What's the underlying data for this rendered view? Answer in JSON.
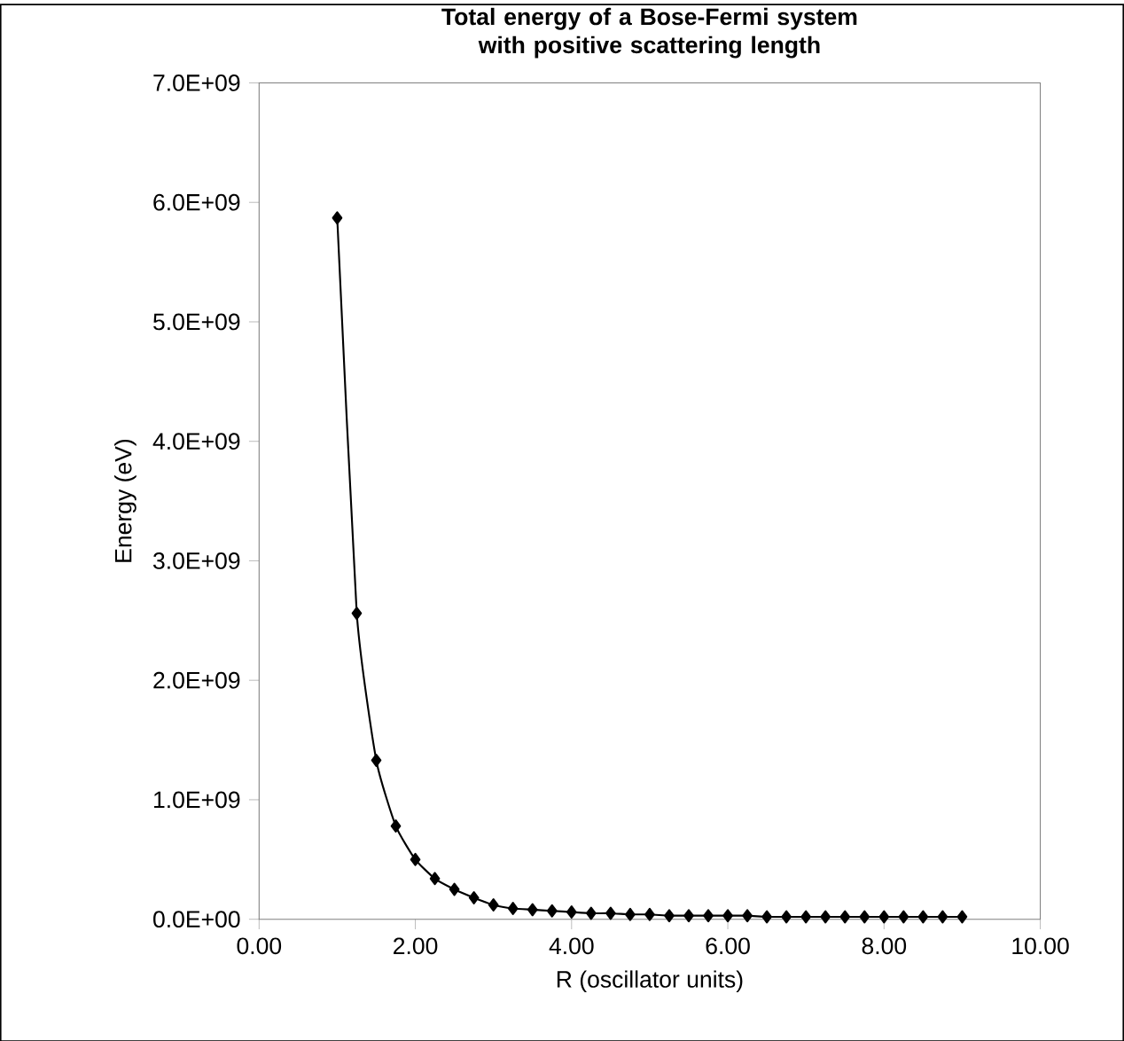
{
  "chart_data": {
    "type": "line",
    "title": "Total energy of a Bose-Fermi system with positive scattering length",
    "xlabel": "R (oscillator units)",
    "ylabel": "Energy (eV)",
    "x": [
      1,
      1.25,
      1.5,
      1.75,
      2,
      2.25,
      2.5,
      2.75,
      3,
      3.25,
      3.5,
      3.75,
      4,
      4.25,
      4.5,
      4.75,
      5,
      5.25,
      5.5,
      5.75,
      6,
      6.25,
      6.5,
      6.75,
      7,
      7.25,
      7.5,
      7.75,
      8,
      8.25,
      8.5,
      8.75,
      9
    ],
    "series": [
      {
        "color": "#000000",
        "values": [
          5870000000.0,
          2560000000.0,
          1330000000.0,
          780000000.0,
          500000000.0,
          340000000.0,
          250000000.0,
          180000000.0,
          120000000.0,
          90000000.0,
          80000000.0,
          70000000.0,
          60000000.0,
          50000000.0,
          50000000.0,
          40000000.0,
          40000000.0,
          30000000.0,
          30000000.0,
          30000000.0,
          30000000.0,
          30000000.0,
          20000000.0,
          20000000.0,
          20000000.0,
          20000000.0,
          20000000.0,
          20000000.0,
          20000000.0,
          20000000.0,
          20000000.0,
          20000000.0,
          20000000.0
        ]
      }
    ],
    "xlim": [
      0,
      10
    ],
    "ylim": [
      0,
      7000000000.0
    ],
    "xticks": [
      {
        "value": 0,
        "label": "0.00"
      },
      {
        "value": 2,
        "label": "2.00"
      },
      {
        "value": 4,
        "label": "4.00"
      },
      {
        "value": 6,
        "label": "6.00"
      },
      {
        "value": 8,
        "label": "8.00"
      },
      {
        "value": 10,
        "label": "10.00"
      }
    ],
    "yticks": [
      {
        "value": 0,
        "label": "0.0E+00"
      },
      {
        "value": 1000000000.0,
        "label": "1.0E+09"
      },
      {
        "value": 2000000000.0,
        "label": "2.0E+09"
      },
      {
        "value": 3000000000.0,
        "label": "3.0E+09"
      },
      {
        "value": 4000000000.0,
        "label": "4.0E+09"
      },
      {
        "value": 5000000000.0,
        "label": "5.0E+09"
      },
      {
        "value": 6000000000.0,
        "label": "6.0E+09"
      },
      {
        "value": 7000000000.0,
        "label": "7.0E+09"
      }
    ],
    "marker": "diamond",
    "line_style": "solid"
  }
}
